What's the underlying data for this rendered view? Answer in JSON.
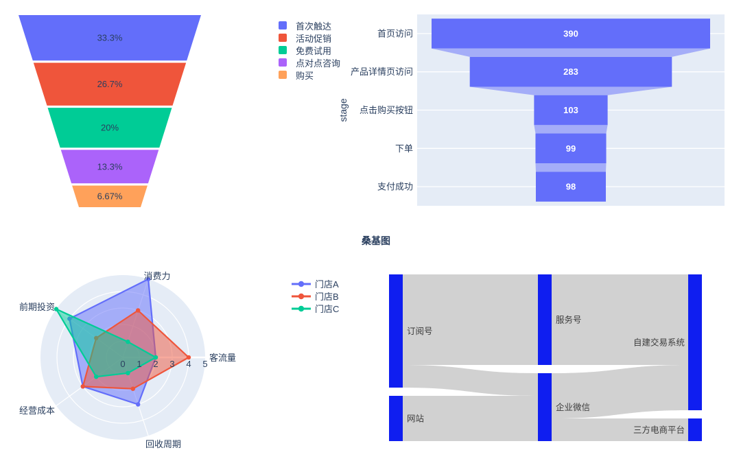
{
  "chart_data": [
    {
      "type": "funnel",
      "variant": "funnelarea",
      "title": "",
      "legend_position": "top-right",
      "segments": [
        {
          "name": "首次触达",
          "label": "33.3%",
          "value": 33.3,
          "color": "#636efa"
        },
        {
          "name": "活动促销",
          "label": "26.7%",
          "value": 26.7,
          "color": "#ef553b"
        },
        {
          "name": "免费试用",
          "label": "20%",
          "value": 20.0,
          "color": "#00cc96"
        },
        {
          "name": "点对点咨询",
          "label": "13.3%",
          "value": 13.3,
          "color": "#ab63fa"
        },
        {
          "name": "购买",
          "label": "6.67%",
          "value": 6.67,
          "color": "#ffa15a"
        }
      ]
    },
    {
      "type": "funnel",
      "variant": "horizontal-centered",
      "ylabel": "stage",
      "bar_color": "#636efa",
      "connector_opacity": 0.5,
      "plot_bg": "#e5ecf6",
      "grid_color": "#ffffff",
      "stages": [
        {
          "label": "首页访问",
          "value": 390
        },
        {
          "label": "产品详情页访问",
          "value": 283
        },
        {
          "label": "点击购买按钮",
          "value": 103
        },
        {
          "label": "下单",
          "value": 99
        },
        {
          "label": "支付成功",
          "value": 98
        }
      ]
    },
    {
      "type": "radar",
      "axes": [
        "客流量",
        "消费力",
        "前期投资",
        "经营成本",
        "回收周期"
      ],
      "tick_labels": [
        "0",
        "1",
        "2",
        "3",
        "4",
        "5"
      ],
      "r_max": 5,
      "plot_bg": "#e5ecf6",
      "series": [
        {
          "name": "门店A",
          "color": "#636efa",
          "values": [
            2,
            5,
            4,
            3,
            3
          ]
        },
        {
          "name": "门店B",
          "color": "#ef553b",
          "values": [
            4,
            3,
            2,
            3,
            2
          ]
        },
        {
          "name": "门店C",
          "color": "#00cc96",
          "values": [
            2,
            1,
            5,
            2,
            1
          ]
        }
      ]
    },
    {
      "type": "sankey",
      "title": "桑基图",
      "node_color": "#0f1ef0",
      "link_color": "#cdcdcd",
      "nodes": [
        {
          "label": "订阅号",
          "column": 0
        },
        {
          "label": "网站",
          "column": 0
        },
        {
          "label": "服务号",
          "column": 1
        },
        {
          "label": "企业微信",
          "column": 1
        },
        {
          "label": "自建交易系统",
          "column": 2
        },
        {
          "label": "三方电商平台",
          "column": 2
        }
      ],
      "links": [
        {
          "source": "订阅号",
          "target": "服务号",
          "value": 4
        },
        {
          "source": "订阅号",
          "target": "企业微信",
          "value": 1
        },
        {
          "source": "网站",
          "target": "企业微信",
          "value": 2
        },
        {
          "source": "服务号",
          "target": "自建交易系统",
          "value": 4
        },
        {
          "source": "企业微信",
          "target": "自建交易系统",
          "value": 2
        },
        {
          "source": "企业微信",
          "target": "三方电商平台",
          "value": 1
        }
      ]
    }
  ]
}
